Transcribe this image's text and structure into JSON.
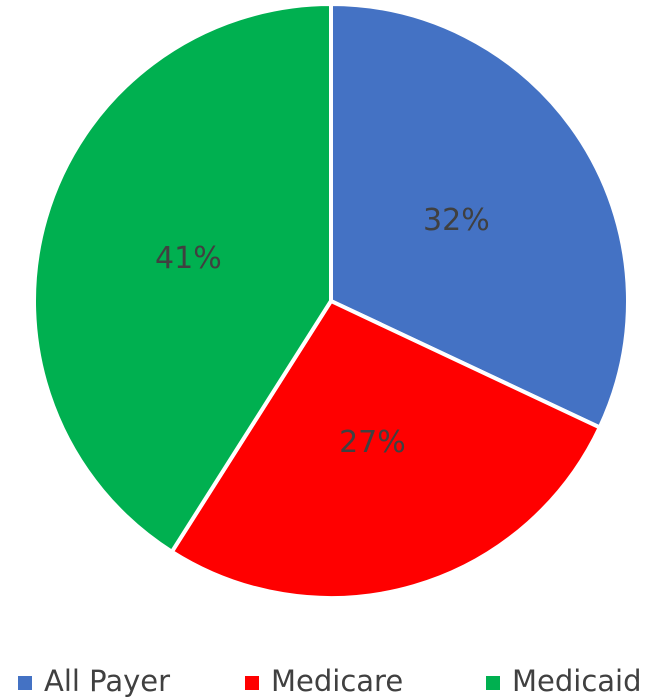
{
  "chart_data": {
    "type": "pie",
    "categories": [
      "All Payer",
      "Medicare",
      "Medicaid"
    ],
    "values": [
      32,
      27,
      41
    ],
    "value_labels": [
      "32%",
      "27%",
      "41%"
    ],
    "colors": [
      "#4472c4",
      "#ff0000",
      "#00b050"
    ],
    "legend": "bottom"
  }
}
